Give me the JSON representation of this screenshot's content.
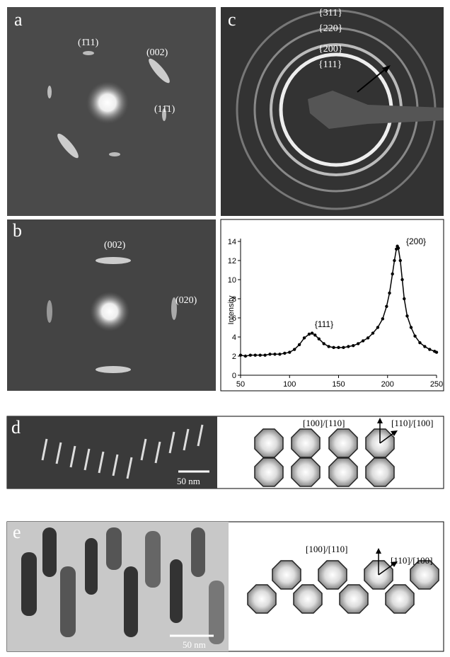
{
  "panels": {
    "a": {
      "label": "a",
      "spots": [
        "(1̄11)",
        "(002)",
        "(11̄1)"
      ]
    },
    "b": {
      "label": "b",
      "spots": [
        "(002)",
        "(020)"
      ]
    },
    "c": {
      "label": "c",
      "rings": [
        "{311}",
        "{220}",
        "{200}",
        "{111}"
      ]
    },
    "d": {
      "label": "d",
      "scale": "50 nm",
      "directions": [
        "[100]/[110]",
        "[110]/[100]"
      ]
    },
    "e": {
      "label": "e",
      "scale": "50 nm",
      "directions": [
        "[100]/[110]",
        "[110]/[100]"
      ]
    }
  },
  "chart_data": {
    "type": "line",
    "y_label": "Intensity",
    "color": "#000000",
    "annotations": [
      "{111}",
      "{200}"
    ],
    "x": [
      50,
      55,
      60,
      65,
      70,
      75,
      80,
      85,
      90,
      95,
      100,
      105,
      110,
      115,
      120,
      123,
      126,
      130,
      135,
      140,
      145,
      150,
      155,
      160,
      165,
      170,
      175,
      180,
      185,
      190,
      195,
      199,
      202,
      205,
      207,
      209,
      210,
      211,
      213,
      215,
      217,
      220,
      224,
      228,
      233,
      238,
      243,
      248,
      250
    ],
    "values": [
      2.1,
      2.0,
      2.1,
      2.1,
      2.1,
      2.1,
      2.2,
      2.2,
      2.2,
      2.3,
      2.4,
      2.7,
      3.2,
      3.9,
      4.3,
      4.4,
      4.2,
      3.8,
      3.3,
      3.0,
      2.9,
      2.9,
      2.9,
      3.0,
      3.1,
      3.3,
      3.6,
      3.9,
      4.4,
      5.0,
      5.9,
      7.2,
      8.6,
      10.6,
      12.0,
      13.2,
      13.5,
      13.3,
      12.0,
      10.0,
      8.0,
      6.2,
      5.0,
      4.1,
      3.4,
      3.0,
      2.7,
      2.5,
      2.4
    ],
    "xlim": [
      50,
      250
    ],
    "xticks": [
      50,
      100,
      150,
      200,
      250
    ],
    "ylim": [
      0,
      14
    ],
    "yticks": [
      0,
      2,
      4,
      6,
      8,
      10,
      12,
      14
    ]
  }
}
